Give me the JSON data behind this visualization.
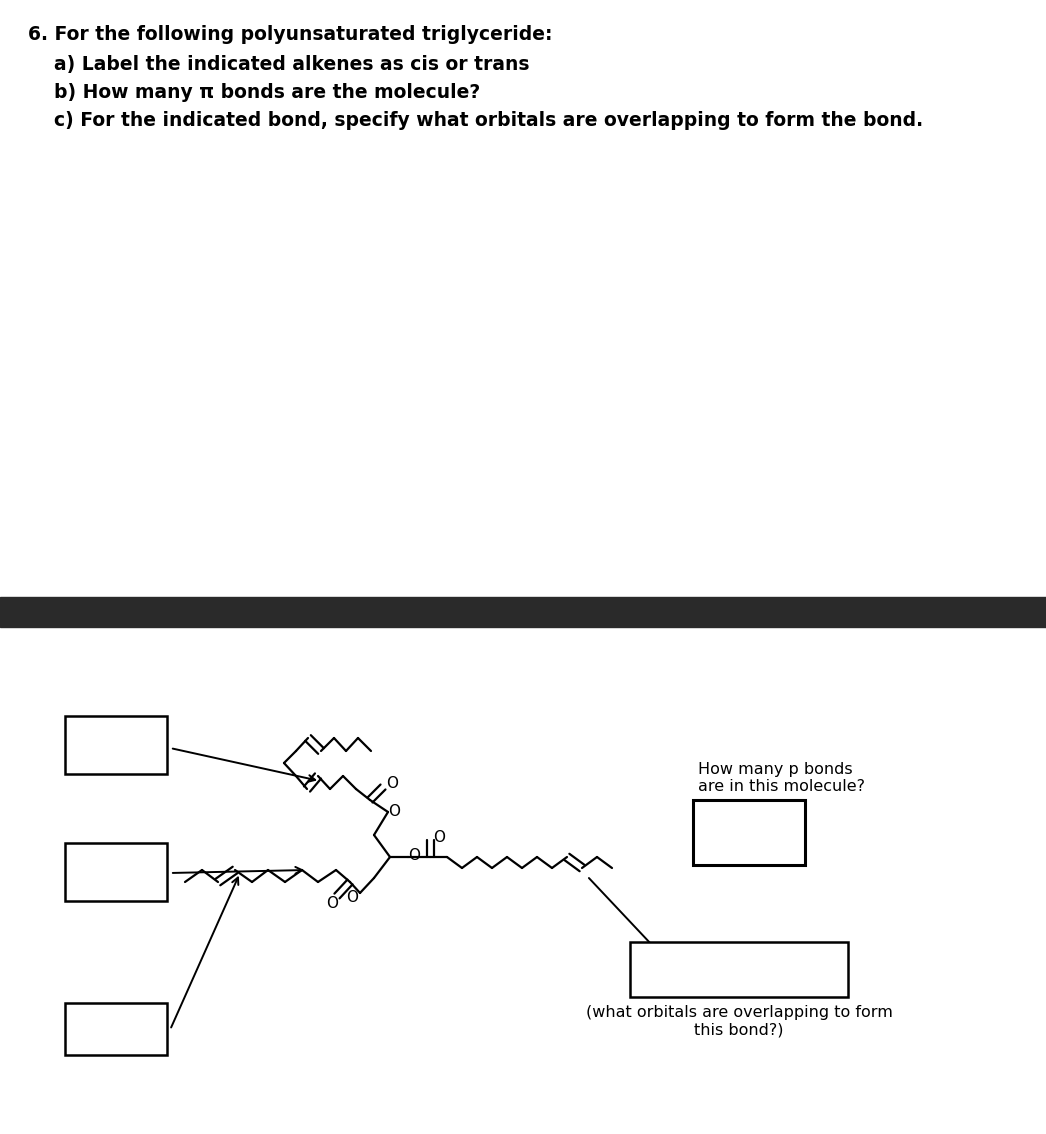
{
  "title": "6. For the following polyunsaturated triglyceride:",
  "line_a": "    a) Label the indicated alkenes as cis or trans",
  "line_b": "    b) How many π bonds are the molecule?",
  "line_c": "    c) For the indicated bond, specify what orbitals are overlapping to form the bond.",
  "right_text1": "How many p bonds\nare in this molecule?",
  "right_text2": "(what orbitals are overlapping to form\nthis bond?)",
  "bar_color": "#2a2a2a",
  "bg_color": "#ffffff",
  "font_size": 13.5
}
